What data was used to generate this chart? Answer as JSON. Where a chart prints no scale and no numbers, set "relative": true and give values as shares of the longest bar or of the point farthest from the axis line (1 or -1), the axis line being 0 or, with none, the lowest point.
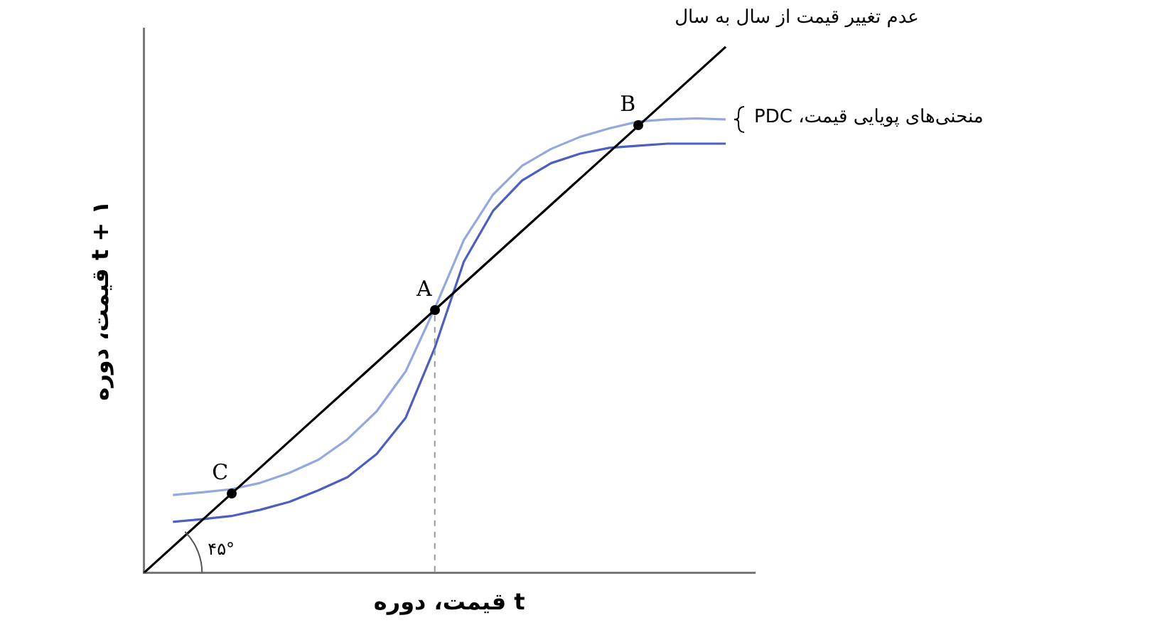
{
  "chart_data": {
    "type": "line",
    "relative": true,
    "xlabel": "قیمت، دوره t",
    "ylabel": "قیمت، دوره t + ۱",
    "tick_labels": false,
    "grid": false,
    "categories": [
      null,
      null,
      null,
      null,
      null,
      null,
      null,
      null,
      null,
      null,
      null,
      null,
      null,
      null,
      null,
      null,
      null,
      null,
      null,
      null,
      null,
      null
    ],
    "series": [
      {
        "type": "line",
        "color": "#000000",
        "values": [
          0,
          0.05,
          0.1,
          0.15,
          0.2,
          0.25,
          0.3,
          0.35,
          0.4,
          0.45,
          0.5,
          0.55,
          0.6,
          0.65,
          0.7,
          0.75,
          0.8,
          0.85,
          0.9,
          0.95,
          1,
          null
        ]
      },
      {
        "type": "line",
        "color": "#93a8dc",
        "values": [
          null,
          0.148,
          0.153,
          0.159,
          0.171,
          0.19,
          0.215,
          0.254,
          0.307,
          0.383,
          0.503,
          0.633,
          0.719,
          0.774,
          0.806,
          0.829,
          0.845,
          0.858,
          0.862,
          0.864,
          0.862,
          null
        ]
      },
      {
        "type": "line",
        "color": "#4c5fbf",
        "values": [
          null,
          0.097,
          0.102,
          0.108,
          0.12,
          0.135,
          0.157,
          0.182,
          0.226,
          0.295,
          0.428,
          0.592,
          0.688,
          0.746,
          0.779,
          0.797,
          0.808,
          0.812,
          0.816,
          0.816,
          0.816,
          null
        ]
      }
    ],
    "annotations": [
      "عدم تغییر قیمت از سال به سال",
      "منحنی‌های پویایی قیمت، PDC",
      "۴۵°",
      {
        "text": "A",
        "y": 0.5
      },
      {
        "text": "B",
        "y": 0.85
      },
      {
        "text": "C",
        "y": 0.15
      }
    ]
  }
}
